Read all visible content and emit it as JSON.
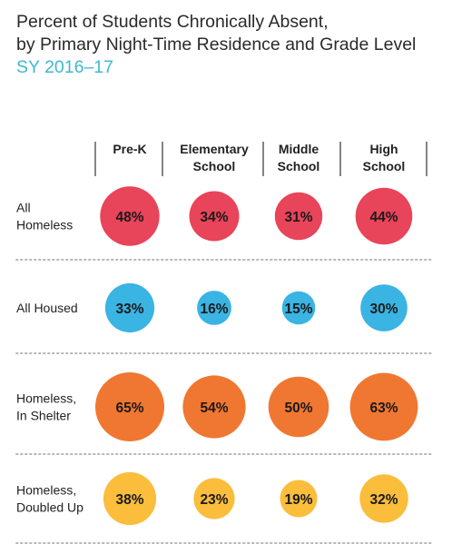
{
  "title_lines": [
    "Percent of Students Chronically Absent,",
    "by Primary Night-Time Residence and Grade Level"
  ],
  "subtitle": "SY 2016–17",
  "colors": {
    "title": "#2a2a2a",
    "subtitle": "#3fb8d0",
    "divider": "#b8b8b8",
    "header_tick": "#333333"
  },
  "chart_data": {
    "type": "bubble-matrix",
    "title": "Percent of Students Chronically Absent, by Primary Night-Time Residence and Grade Level",
    "subtitle": "SY 2016–17",
    "columns": [
      {
        "label_lines": [
          "Pre-K"
        ]
      },
      {
        "label_lines": [
          "Elementary",
          "School"
        ]
      },
      {
        "label_lines": [
          "Middle",
          "School"
        ]
      },
      {
        "label_lines": [
          "High",
          "School"
        ]
      }
    ],
    "rows": [
      {
        "label_lines": [
          "All",
          "Homeless"
        ],
        "color": "#e8445a",
        "values": [
          48,
          34,
          31,
          44
        ]
      },
      {
        "label_lines": [
          "All Housed"
        ],
        "color": "#3ab4e3",
        "values": [
          33,
          16,
          15,
          30
        ]
      },
      {
        "label_lines": [
          "Homeless,",
          "In Shelter"
        ],
        "color": "#f07731",
        "values": [
          65,
          54,
          50,
          63
        ]
      },
      {
        "label_lines": [
          "Homeless,",
          "Doubled Up"
        ],
        "color": "#fbbd3c",
        "values": [
          38,
          23,
          19,
          32
        ]
      }
    ],
    "value_suffix": "%"
  }
}
